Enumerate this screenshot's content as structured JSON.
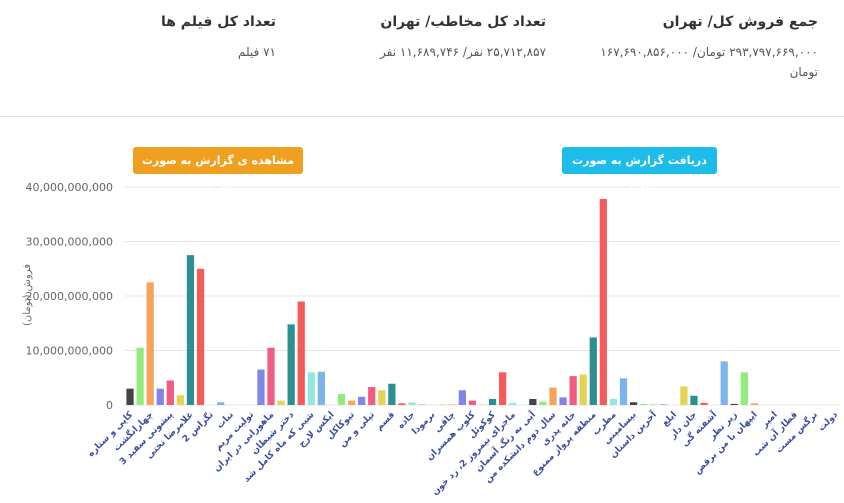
{
  "stats": [
    {
      "title": "جمع فروش کل/ تهران",
      "value": "۲۹۳,۷۹۷,۶۶۹,۰۰۰ تومان/ ۱۶۷,۶۹۰,۸۵۶,۰۰۰ تومان"
    },
    {
      "title": "تعداد کل مخاطب/ تهران",
      "value": "۲۵,۷۱۲,۸۵۷ نفر/ ۱۱,۶۸۹,۷۴۶ نفر"
    },
    {
      "title": "تعداد کل فیلم ها",
      "value": "۷۱ فیلم"
    }
  ],
  "buttons": [
    {
      "label": "مشاهده ی گزارش به صورت جدول"
    },
    {
      "label": "دریافت گزارش به صورت اکسل"
    }
  ],
  "chart_data": {
    "type": "bar",
    "y_label": "فروش (تومان)",
    "colors": [
      "#434348",
      "#90ed7d",
      "#f7a35c",
      "#8085e9",
      "#f15c80",
      "#e4d354",
      "#2b908f",
      "#f45b5b",
      "#91e8e1",
      "#7cb5ec"
    ],
    "grid": true,
    "ylim": [
      0,
      40000000000
    ],
    "yticks": [
      0,
      {
        "value": 10000000000,
        "label": "10,000,000,000"
      },
      {
        "value": 20000000000,
        "label": "20,000,000,000"
      },
      {
        "value": 30000000000,
        "label": "30,000,000,000"
      },
      {
        "value": 40000000000,
        "label": "40,000,000,000"
      }
    ],
    "categories": [
      "کاپی و ستاره",
      null,
      "چهارانگشت",
      null,
      "پیشونی سفید 3",
      null,
      "غلامرضا تختی",
      null,
      "تگزاس 2",
      null,
      "نبات",
      null,
      "تولیت مریم",
      null,
      "ماهورانی در ایران",
      null,
      "دختر شیطان",
      null,
      "شبی که ماه کامل شد",
      null,
      "ایکس لارج",
      null,
      "تیوکاکل",
      null,
      "تپلی و من",
      null,
      "قسم",
      null,
      "جاذه",
      null,
      "برمودا",
      null,
      "چاقی",
      null,
      "کلوپ همسران",
      null,
      "کوکوئل",
      null,
      "ماجرای نیمروز 2، رد خون",
      null,
      "آبی به رنگ آسمان",
      null,
      "سال دوم دانشکده من",
      null,
      "خانه پدری",
      null,
      "منطقه پرواز ممنوع",
      null,
      "مطرب",
      null,
      "بیسامینی",
      null,
      "آخرین داستان",
      null,
      "ایلغ",
      null,
      "جان دار",
      null,
      "آشفته گی",
      null,
      "زیر نظر",
      null,
      "ایپهان با من برقص",
      null,
      "امیر",
      null,
      "قطار آن شب",
      null,
      "نرگس مست",
      null,
      "دولت"
    ],
    "values": [
      3000000000,
      10500000000,
      22500000000,
      3000000000,
      4500000000,
      1800000000,
      27500000000,
      25000000000,
      0,
      500000000,
      0,
      0,
      0,
      6500000000,
      10500000000,
      800000000,
      14800000000,
      19000000000,
      6000000000,
      6100000000,
      0,
      2000000000,
      800000000,
      1500000000,
      3300000000,
      2700000000,
      3900000000,
      300000000,
      500000000,
      100000000,
      0,
      100000000,
      100000000,
      2700000000,
      800000000,
      100000000,
      1100000000,
      6000000000,
      400000000,
      0,
      1100000000,
      600000000,
      3200000000,
      1400000000,
      5300000000,
      5600000000,
      12400000000,
      37800000000,
      1100000000,
      4900000000,
      500000000,
      200000000,
      100000000,
      100000000,
      0,
      3400000000,
      1700000000,
      400000000,
      0,
      8000000000,
      200000000,
      6000000000,
      300000000,
      0,
      0,
      0,
      0,
      0,
      0,
      0,
      0
    ]
  }
}
